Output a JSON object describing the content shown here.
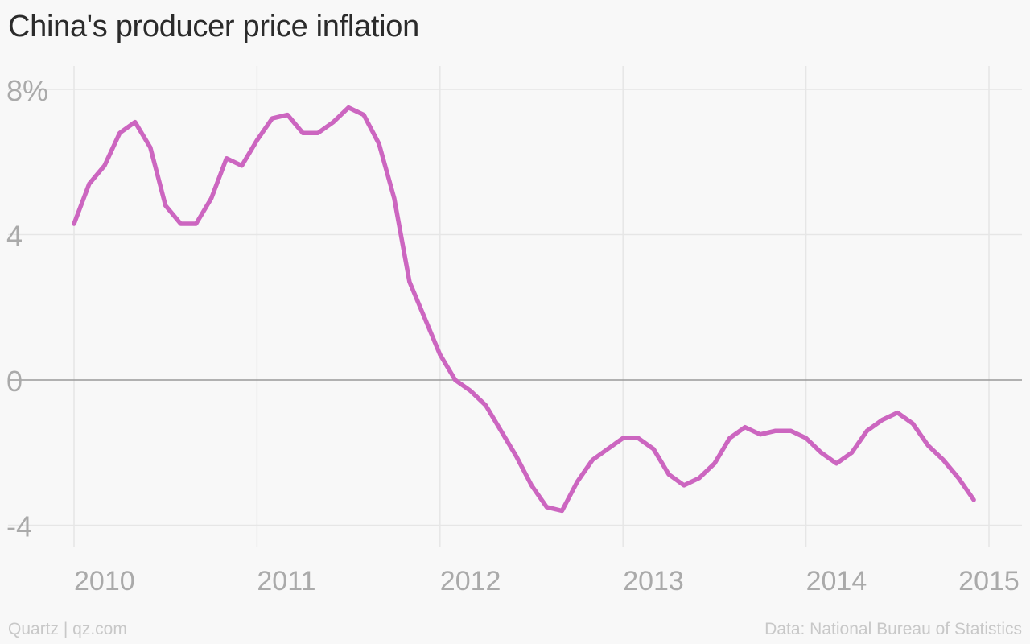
{
  "header": {
    "title": "China's producer price inflation"
  },
  "footer": {
    "credit": "Quartz | qz.com",
    "source": "Data: National Bureau of Statistics"
  },
  "colors": {
    "line": "#cc66c0",
    "grid": "#e6e6e6",
    "zero_line": "#999999",
    "tick_text": "#aaaaaa",
    "background": "#f8f8f8"
  },
  "chart_data": {
    "type": "line",
    "title": "China's producer price inflation",
    "xlabel": "",
    "ylabel": "",
    "xlim": [
      2010,
      2015
    ],
    "ylim": [
      -4.5,
      8
    ],
    "y_ticks": [
      {
        "value": 8,
        "label": "8%"
      },
      {
        "value": 4,
        "label": "4"
      },
      {
        "value": 0,
        "label": "0"
      },
      {
        "value": -4,
        "label": "-4"
      }
    ],
    "x_ticks": [
      {
        "value": 2010,
        "label": "2010"
      },
      {
        "value": 2011,
        "label": "2011"
      },
      {
        "value": 2012,
        "label": "2012"
      },
      {
        "value": 2013,
        "label": "2013"
      },
      {
        "value": 2014,
        "label": "2014"
      },
      {
        "value": 2015,
        "label": "2015"
      }
    ],
    "grid": true,
    "series": [
      {
        "x": [
          "2010-01",
          "2010-02",
          "2010-03",
          "2010-04",
          "2010-05",
          "2010-06",
          "2010-07",
          "2010-08",
          "2010-09",
          "2010-10",
          "2010-11",
          "2010-12",
          "2011-01",
          "2011-02",
          "2011-03",
          "2011-04",
          "2011-05",
          "2011-06",
          "2011-07",
          "2011-08",
          "2011-09",
          "2011-10",
          "2011-11",
          "2011-12",
          "2012-01",
          "2012-02",
          "2012-03",
          "2012-04",
          "2012-05",
          "2012-06",
          "2012-07",
          "2012-08",
          "2012-09",
          "2012-10",
          "2012-11",
          "2012-12",
          "2013-01",
          "2013-02",
          "2013-03",
          "2013-04",
          "2013-05",
          "2013-06",
          "2013-07",
          "2013-08",
          "2013-09",
          "2013-10",
          "2013-11",
          "2013-12",
          "2014-01",
          "2014-02",
          "2014-03",
          "2014-04",
          "2014-05",
          "2014-06",
          "2014-07",
          "2014-08",
          "2014-09",
          "2014-10",
          "2014-11",
          "2014-12"
        ],
        "values": [
          4.3,
          5.4,
          5.9,
          6.8,
          7.1,
          6.4,
          4.8,
          4.3,
          4.3,
          5.0,
          6.1,
          5.9,
          6.6,
          7.2,
          7.3,
          6.8,
          6.8,
          7.1,
          7.5,
          7.3,
          6.5,
          5.0,
          2.7,
          1.7,
          0.7,
          0.0,
          -0.3,
          -0.7,
          -1.4,
          -2.1,
          -2.9,
          -3.5,
          -3.6,
          -2.8,
          -2.2,
          -1.9,
          -1.6,
          -1.6,
          -1.9,
          -2.6,
          -2.9,
          -2.7,
          -2.3,
          -1.6,
          -1.3,
          -1.5,
          -1.4,
          -1.4,
          -1.6,
          -2.0,
          -2.3,
          -2.0,
          -1.4,
          -1.1,
          -0.9,
          -1.2,
          -1.8,
          -2.2,
          -2.7,
          -3.3
        ]
      }
    ]
  }
}
